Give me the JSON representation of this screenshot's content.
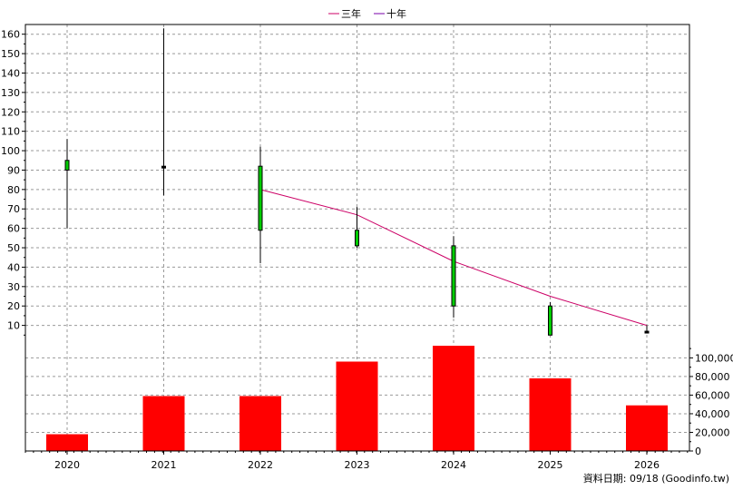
{
  "legend": {
    "items": [
      {
        "label": "三年",
        "color": "#cc0066"
      },
      {
        "label": "十年",
        "color": "#7a00a8"
      }
    ]
  },
  "footer": {
    "date_label": "資料日期: 09/18",
    "source": "(Goodinfo.tw)"
  },
  "chart_data": [
    {
      "type": "candlestick",
      "categories": [
        "2020",
        "2021",
        "2022",
        "2023",
        "2024",
        "2025",
        "2026"
      ],
      "ohlc": [
        {
          "open": 90,
          "high": 106,
          "low": 60,
          "close": 95
        },
        {
          "open": 92,
          "high": 163,
          "low": 77,
          "close": 92
        },
        {
          "open": 59,
          "high": 102,
          "low": 42,
          "close": 92
        },
        {
          "open": 51,
          "high": 71,
          "low": 50,
          "close": 59
        },
        {
          "open": 20,
          "high": 56,
          "low": 14,
          "close": 51
        },
        {
          "open": 5,
          "high": 22,
          "low": 5,
          "close": 20
        },
        {
          "open": 7,
          "high": 10,
          "low": 6,
          "close": 7
        }
      ],
      "series": [
        {
          "name": "三年",
          "x": [
            "2022",
            "2023",
            "2024",
            "2025",
            "2026"
          ],
          "values": [
            80,
            67,
            43,
            25,
            10
          ],
          "color": "#cc0066"
        }
      ],
      "y_ticks": [
        10,
        20,
        30,
        40,
        50,
        60,
        70,
        80,
        90,
        100,
        110,
        120,
        130,
        140,
        150,
        160
      ],
      "ylim": [
        0,
        165
      ],
      "grid": true,
      "legend_position": "top-center",
      "candle_up_color": "#00cc00"
    },
    {
      "type": "bar",
      "categories": [
        "2020",
        "2021",
        "2022",
        "2023",
        "2024",
        "2025",
        "2026"
      ],
      "values": [
        18000,
        59000,
        59000,
        96000,
        113000,
        78000,
        49000
      ],
      "y_ticks": [
        0,
        20000,
        40000,
        60000,
        80000,
        100000
      ],
      "y_tick_labels": [
        "0",
        "20,000",
        "40,000",
        "60,000",
        "80,000",
        "100,000"
      ],
      "ylim": [
        0,
        115000
      ],
      "bar_color": "#ff0000",
      "grid": true
    }
  ]
}
